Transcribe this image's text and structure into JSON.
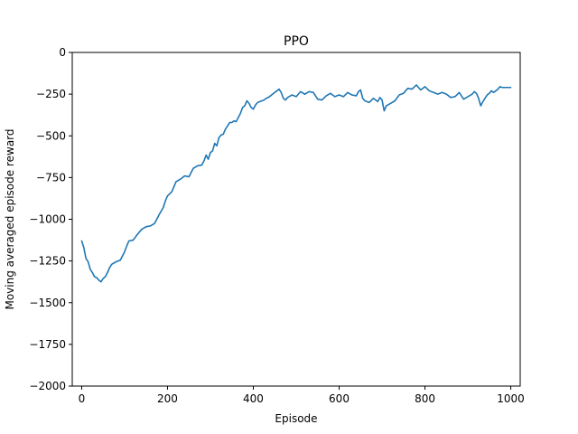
{
  "chart_data": {
    "type": "line",
    "title": "PPO",
    "xlabel": "Episode",
    "ylabel": "Moving averaged episode reward",
    "xlim": [
      -22,
      1022
    ],
    "ylim": [
      -2000,
      0
    ],
    "xticks": [
      0,
      200,
      400,
      600,
      800,
      1000
    ],
    "yticks": [
      -2000,
      -1750,
      -1500,
      -1250,
      -1000,
      -750,
      -500,
      -250,
      0
    ],
    "grid": false,
    "legend": "none",
    "series": [
      {
        "color": "#1f77b4",
        "points": [
          [
            0,
            -1130
          ],
          [
            5,
            -1170
          ],
          [
            10,
            -1235
          ],
          [
            15,
            -1255
          ],
          [
            20,
            -1300
          ],
          [
            25,
            -1320
          ],
          [
            30,
            -1345
          ],
          [
            35,
            -1350
          ],
          [
            40,
            -1365
          ],
          [
            45,
            -1375
          ],
          [
            50,
            -1355
          ],
          [
            55,
            -1345
          ],
          [
            60,
            -1320
          ],
          [
            65,
            -1290
          ],
          [
            70,
            -1270
          ],
          [
            80,
            -1255
          ],
          [
            90,
            -1245
          ],
          [
            100,
            -1195
          ],
          [
            105,
            -1160
          ],
          [
            110,
            -1130
          ],
          [
            120,
            -1125
          ],
          [
            130,
            -1090
          ],
          [
            140,
            -1060
          ],
          [
            150,
            -1045
          ],
          [
            160,
            -1040
          ],
          [
            170,
            -1025
          ],
          [
            180,
            -975
          ],
          [
            190,
            -930
          ],
          [
            195,
            -890
          ],
          [
            200,
            -860
          ],
          [
            210,
            -835
          ],
          [
            215,
            -805
          ],
          [
            220,
            -775
          ],
          [
            230,
            -760
          ],
          [
            240,
            -740
          ],
          [
            250,
            -745
          ],
          [
            255,
            -720
          ],
          [
            260,
            -695
          ],
          [
            270,
            -680
          ],
          [
            280,
            -675
          ],
          [
            285,
            -650
          ],
          [
            290,
            -615
          ],
          [
            295,
            -640
          ],
          [
            300,
            -600
          ],
          [
            305,
            -590
          ],
          [
            310,
            -545
          ],
          [
            315,
            -560
          ],
          [
            320,
            -510
          ],
          [
            325,
            -495
          ],
          [
            330,
            -490
          ],
          [
            335,
            -460
          ],
          [
            340,
            -440
          ],
          [
            345,
            -420
          ],
          [
            350,
            -420
          ],
          [
            355,
            -410
          ],
          [
            360,
            -415
          ],
          [
            365,
            -390
          ],
          [
            370,
            -365
          ],
          [
            375,
            -330
          ],
          [
            380,
            -320
          ],
          [
            385,
            -290
          ],
          [
            390,
            -305
          ],
          [
            395,
            -330
          ],
          [
            400,
            -340
          ],
          [
            405,
            -315
          ],
          [
            410,
            -300
          ],
          [
            415,
            -295
          ],
          [
            420,
            -290
          ],
          [
            425,
            -285
          ],
          [
            430,
            -275
          ],
          [
            435,
            -270
          ],
          [
            440,
            -260
          ],
          [
            445,
            -250
          ],
          [
            450,
            -240
          ],
          [
            455,
            -230
          ],
          [
            460,
            -220
          ],
          [
            465,
            -240
          ],
          [
            470,
            -275
          ],
          [
            475,
            -285
          ],
          [
            480,
            -270
          ],
          [
            490,
            -255
          ],
          [
            500,
            -265
          ],
          [
            510,
            -235
          ],
          [
            520,
            -250
          ],
          [
            530,
            -235
          ],
          [
            540,
            -240
          ],
          [
            550,
            -280
          ],
          [
            560,
            -285
          ],
          [
            570,
            -260
          ],
          [
            580,
            -245
          ],
          [
            590,
            -265
          ],
          [
            600,
            -255
          ],
          [
            610,
            -265
          ],
          [
            620,
            -240
          ],
          [
            630,
            -255
          ],
          [
            640,
            -260
          ],
          [
            645,
            -235
          ],
          [
            650,
            -225
          ],
          [
            655,
            -275
          ],
          [
            660,
            -290
          ],
          [
            670,
            -300
          ],
          [
            680,
            -275
          ],
          [
            690,
            -295
          ],
          [
            695,
            -270
          ],
          [
            700,
            -285
          ],
          [
            705,
            -350
          ],
          [
            710,
            -320
          ],
          [
            720,
            -305
          ],
          [
            730,
            -290
          ],
          [
            740,
            -255
          ],
          [
            750,
            -245
          ],
          [
            760,
            -215
          ],
          [
            770,
            -220
          ],
          [
            780,
            -195
          ],
          [
            790,
            -225
          ],
          [
            800,
            -205
          ],
          [
            810,
            -230
          ],
          [
            820,
            -240
          ],
          [
            830,
            -250
          ],
          [
            840,
            -240
          ],
          [
            850,
            -250
          ],
          [
            860,
            -270
          ],
          [
            870,
            -265
          ],
          [
            880,
            -240
          ],
          [
            890,
            -280
          ],
          [
            900,
            -265
          ],
          [
            910,
            -250
          ],
          [
            915,
            -235
          ],
          [
            920,
            -245
          ],
          [
            925,
            -275
          ],
          [
            930,
            -320
          ],
          [
            935,
            -295
          ],
          [
            940,
            -275
          ],
          [
            945,
            -255
          ],
          [
            950,
            -245
          ],
          [
            955,
            -230
          ],
          [
            960,
            -240
          ],
          [
            965,
            -230
          ],
          [
            970,
            -220
          ],
          [
            975,
            -205
          ],
          [
            980,
            -210
          ],
          [
            990,
            -210
          ],
          [
            1000,
            -210
          ]
        ]
      }
    ]
  }
}
